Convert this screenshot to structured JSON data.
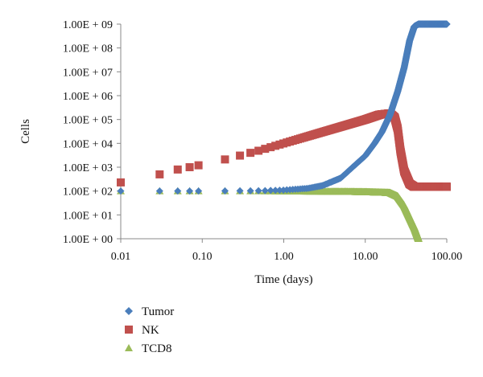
{
  "chart_data": {
    "type": "scatter",
    "title": "",
    "xlabel": "Time (days)",
    "ylabel": "Cells",
    "xscale": "log",
    "yscale": "log",
    "xlim": [
      0.01,
      100
    ],
    "ylim": [
      1,
      1000000000
    ],
    "x_ticks": [
      0.01,
      0.1,
      1,
      10,
      100
    ],
    "x_tick_labels": [
      "0.01",
      "0.10",
      "1.00",
      "10.00",
      "100.00"
    ],
    "y_ticks": [
      1,
      10,
      100,
      1000,
      10000,
      100000,
      1000000,
      10000000,
      100000000,
      1000000000
    ],
    "y_tick_labels": [
      "1.00E + 00",
      "1.00E + 01",
      "1.00E + 02",
      "1.00E + 03",
      "1.00E + 04",
      "1.00E + 05",
      "1.00E + 06",
      "1.00E + 07",
      "1.00E + 08",
      "1.00E + 09"
    ],
    "grid": false,
    "legend_position": "bottom-left",
    "series": [
      {
        "name": "Tumor",
        "color": "#4a7ebb",
        "marker": "diamond",
        "points": [
          [
            0.01,
            100
          ],
          [
            0.03,
            100
          ],
          [
            0.05,
            100
          ],
          [
            0.07,
            100
          ],
          [
            0.1,
            100
          ],
          [
            0.2,
            101
          ],
          [
            0.5,
            103
          ],
          [
            1,
            110
          ],
          [
            2,
            130
          ],
          [
            3,
            170
          ],
          [
            5,
            350
          ],
          [
            7,
            1000
          ],
          [
            10,
            3000
          ],
          [
            13,
            10000
          ],
          [
            16,
            30000
          ],
          [
            20,
            150000
          ],
          [
            25,
            1500000
          ],
          [
            30,
            15000000
          ],
          [
            35,
            200000000
          ],
          [
            40,
            800000000
          ],
          [
            45,
            1000000000
          ],
          [
            100,
            1000000000
          ]
        ]
      },
      {
        "name": "NK",
        "color": "#c0504d",
        "marker": "square",
        "points": [
          [
            0.01,
            230
          ],
          [
            0.03,
            500
          ],
          [
            0.05,
            800
          ],
          [
            0.07,
            1000
          ],
          [
            0.1,
            1300
          ],
          [
            0.2,
            2200
          ],
          [
            0.5,
            5000
          ],
          [
            1,
            10000
          ],
          [
            2,
            20000
          ],
          [
            5,
            50000
          ],
          [
            10,
            100000
          ],
          [
            15,
            160000
          ],
          [
            20,
            180000
          ],
          [
            23,
            120000
          ],
          [
            25,
            40000
          ],
          [
            27,
            5000
          ],
          [
            30,
            700
          ],
          [
            35,
            200
          ],
          [
            40,
            150
          ],
          [
            100,
            150
          ]
        ]
      },
      {
        "name": "TCD8",
        "color": "#9bbb59",
        "marker": "triangle",
        "points": [
          [
            0.01,
            100
          ],
          [
            0.03,
            100
          ],
          [
            0.05,
            100
          ],
          [
            0.07,
            100
          ],
          [
            0.1,
            100
          ],
          [
            0.5,
            100
          ],
          [
            1,
            98
          ],
          [
            5,
            95
          ],
          [
            10,
            92
          ],
          [
            20,
            85
          ],
          [
            25,
            60
          ],
          [
            30,
            25
          ],
          [
            35,
            8
          ],
          [
            40,
            3
          ],
          [
            45,
            1
          ]
        ]
      }
    ]
  }
}
